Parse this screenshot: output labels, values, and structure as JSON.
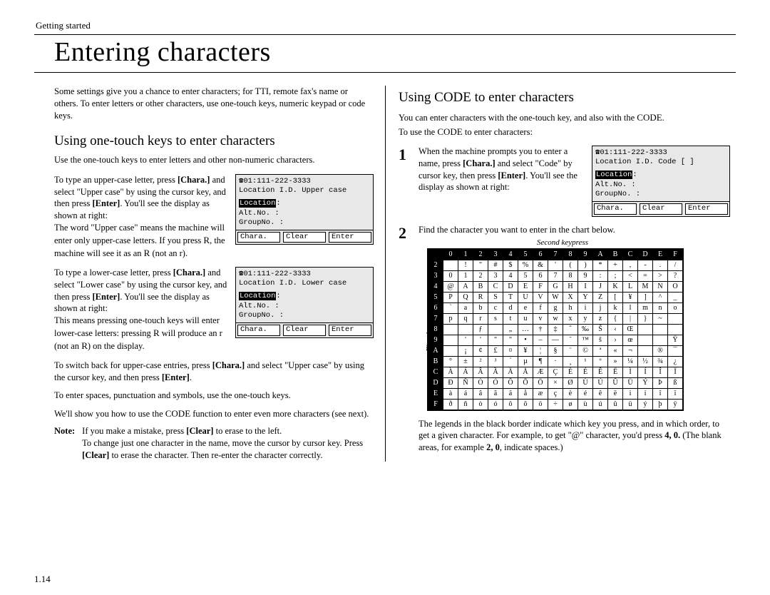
{
  "header": "Getting started",
  "title": "Entering characters",
  "intro": "Some settings give you a chance to enter characters; for TTI, remote fax's name or others. To enter letters or other characters, use one-touch keys, numeric keypad or code keys.",
  "pageNum": "1.14",
  "left": {
    "heading": "Using one-touch keys to enter characters",
    "sub": "Use the one-touch keys to enter letters and other non-numeric characters.",
    "p1a": "To type an upper-case letter, press ",
    "p1b": " and select \"Upper case\" by using the cursor key, and then press ",
    "p1c": ". You'll see the display as shown at right:",
    "p2a": "The word \"Upper case\" means the machine will enter only upper-case letters. If you press ",
    "p2b": ", the machine will see it as an ",
    "p2c": " (not an r).",
    "p3a": "To type a lower-case letter, press ",
    "p3b": " and select \"Lower case\" by using the cursor key, and then press ",
    "p3c": ". You'll see the display as shown at right:",
    "p4a": "This means pressing one-touch keys will enter lower-case letters: pressing ",
    "p4b": " will produce an r (not an ",
    "p4c": ") on the display.",
    "p5a": "To switch back for upper-case entries, press ",
    "p5b": " and select \"Upper case\" by using the cursor key, and then press ",
    "p6": "To enter spaces, punctuation and symbols, use the one-touch keys.",
    "p7a": "We'll show you how to use the ",
    "p7b": " function to enter even more characters (see next).",
    "noteLabel": "Note:",
    "note1a": "If you make a mistake, press ",
    "note1b": " to erase to the left.",
    "note2": "To change just one character in the name, move the cursor by cursor key. Press ",
    "note2b": " to erase the character. Then re-enter the character correctly.",
    "bold": {
      "chara": "[Chara.]",
      "enter": "[Enter]",
      "clear": "[Clear]",
      "r_upper": "R",
      "r_upper2": "R"
    },
    "sc": {
      "r": "R",
      "r2": "R",
      "code": "CODE"
    }
  },
  "right": {
    "heading_a": "Using ",
    "heading_b": " to enter characters",
    "heading_code": "CODE",
    "sub1a": "You can enter characters with the one-touch key, and also with the ",
    "sub1b": ".",
    "sub2a": "To use the ",
    "sub2b": " to enter characters:",
    "code": "CODE",
    "step1a": "When the machine prompts you to enter a name, press ",
    "step1b": " and select \"Code\" by cursor key, then press ",
    "step1c": ". You'll see the display as shown at right:",
    "step2": "Find the character you want to enter in the chart below.",
    "legendTop": "Second keypress",
    "legendLeft": "First keypress",
    "after1": "The legends in the black border indicate which key you press, and in which order, to get a given character. For example, to get \"@\" character, you'd press ",
    "after1b": " (The blank areas, for example ",
    "after1c": ", indicate spaces.)",
    "bold": {
      "chara": "[Chara.]",
      "enter": "[Enter]",
      "four0": "4, 0.",
      "two0": "2, 0"
    }
  },
  "lcd": {
    "upper": {
      "l1": "☎01:111-222-3333",
      "l2": "Location I.D. Upper case",
      "l4inv": "Location",
      "l4r": ":",
      "l5": "Alt.No.  :",
      "l6": "GroupNo. :"
    },
    "lower": {
      "l1": "☎01:111-222-3333",
      "l2": "Location I.D. Lower case",
      "l4inv": "Location",
      "l4r": ":",
      "l5": "Alt.No.  :",
      "l6": "GroupNo. :"
    },
    "code": {
      "l1": "☎01:111-222-3333",
      "l2": "Location I.D. Code    [   ]",
      "l4inv": "Location",
      "l4r": ":",
      "l5": "Alt.No.  :",
      "l6": "GroupNo. :"
    },
    "btns": {
      "b1": "Chara.",
      "b2": "Clear",
      "b3": "Enter"
    }
  },
  "chart": {
    "cols": [
      "0",
      "1",
      "2",
      "3",
      "4",
      "5",
      "6",
      "7",
      "8",
      "9",
      "A",
      "B",
      "C",
      "D",
      "E",
      "F"
    ],
    "rows": [
      {
        "h": "2",
        "c": [
          "",
          "!",
          "\"",
          "#",
          "$",
          "%",
          "&",
          "'",
          "(",
          ")",
          "*",
          "+",
          ",",
          "-",
          ".",
          "/"
        ]
      },
      {
        "h": "3",
        "c": [
          "0",
          "1",
          "2",
          "3",
          "4",
          "5",
          "6",
          "7",
          "8",
          "9",
          ":",
          ";",
          "<",
          "=",
          ">",
          "?"
        ]
      },
      {
        "h": "4",
        "c": [
          "@",
          "A",
          "B",
          "C",
          "D",
          "E",
          "F",
          "G",
          "H",
          "I",
          "J",
          "K",
          "L",
          "M",
          "N",
          "O"
        ]
      },
      {
        "h": "5",
        "c": [
          "P",
          "Q",
          "R",
          "S",
          "T",
          "U",
          "V",
          "W",
          "X",
          "Y",
          "Z",
          "[",
          "¥",
          "]",
          "^",
          "_"
        ]
      },
      {
        "h": "6",
        "c": [
          "`",
          "a",
          "b",
          "c",
          "d",
          "e",
          "f",
          "g",
          "h",
          "i",
          "j",
          "k",
          "l",
          "m",
          "n",
          "o"
        ]
      },
      {
        "h": "7",
        "c": [
          "p",
          "q",
          "r",
          "s",
          "t",
          "u",
          "v",
          "w",
          "x",
          "y",
          "z",
          "{",
          "|",
          "}",
          "~",
          ""
        ]
      },
      {
        "h": "8",
        "c": [
          "",
          "",
          "ƒ",
          "",
          "„",
          "…",
          "†",
          "‡",
          "ˆ",
          "‰",
          "Š",
          "‹",
          "Œ",
          "",
          "",
          ""
        ]
      },
      {
        "h": "9",
        "c": [
          "",
          "'",
          "'",
          "\"",
          "\"",
          "•",
          "–",
          "—",
          "˜",
          "™",
          "š",
          "›",
          "œ",
          "",
          "",
          "Ÿ"
        ]
      },
      {
        "h": "A",
        "c": [
          "",
          "¡",
          "¢",
          "£",
          "¤",
          "¥",
          "¦",
          "§",
          "¨",
          "©",
          "ª",
          "«",
          "¬",
          "",
          "®",
          "¯"
        ]
      },
      {
        "h": "B",
        "c": [
          "°",
          "±",
          "²",
          "³",
          "´",
          "µ",
          "¶",
          "·",
          "¸",
          "¹",
          "º",
          "»",
          "¼",
          "½",
          "¾",
          "¿"
        ]
      },
      {
        "h": "C",
        "c": [
          "À",
          "Á",
          "Â",
          "Ã",
          "Ä",
          "Å",
          "Æ",
          "Ç",
          "È",
          "É",
          "Ê",
          "Ë",
          "Ì",
          "Í",
          "Î",
          "Ï"
        ]
      },
      {
        "h": "D",
        "c": [
          "Ð",
          "Ñ",
          "Ò",
          "Ó",
          "Ô",
          "Õ",
          "Ö",
          "×",
          "Ø",
          "Ù",
          "Ú",
          "Û",
          "Ü",
          "Ý",
          "Þ",
          "ß"
        ]
      },
      {
        "h": "E",
        "c": [
          "à",
          "á",
          "â",
          "ã",
          "ä",
          "å",
          "æ",
          "ç",
          "è",
          "é",
          "ê",
          "ë",
          "ì",
          "í",
          "î",
          "ï"
        ]
      },
      {
        "h": "F",
        "c": [
          "ð",
          "ñ",
          "ò",
          "ó",
          "ô",
          "õ",
          "ö",
          "÷",
          "ø",
          "ù",
          "ú",
          "û",
          "ü",
          "ý",
          "þ",
          "ÿ"
        ]
      }
    ]
  }
}
